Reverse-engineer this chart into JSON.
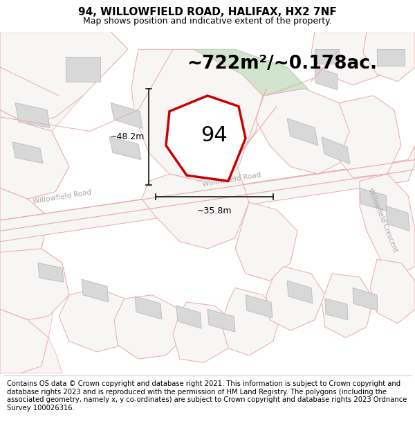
{
  "title_line1": "94, WILLOWFIELD ROAD, HALIFAX, HX2 7NF",
  "title_line2": "Map shows position and indicative extent of the property.",
  "area_text": "~722m²/~0.178ac.",
  "label_94": "94",
  "dim_vertical": "~48.2m",
  "dim_horizontal": "~35.8m",
  "footer_text": "Contains OS data © Crown copyright and database right 2021. This information is subject to Crown copyright and database rights 2023 and is reproduced with the permission of HM Land Registry. The polygons (including the associated geometry, namely x, y co-ordinates) are subject to Crown copyright and database rights 2023 Ordnance Survey 100026316.",
  "map_bg": "#f8f5f5",
  "road_line_color": "#e8aaaa",
  "highlight_color": "#cc0000",
  "building_fill": "#d8d8d8",
  "building_edge": "#c0c0c0",
  "green_fill": "#d0e4ce",
  "green_edge": "#b8d0b4",
  "white_fill": "#ffffff",
  "parcel_fill": "#f8f5f5",
  "parcel_edge": "#e8aaaa",
  "dim_color": "#111111",
  "road_label_color": "#aaaaaa",
  "title_fontsize": 11,
  "subtitle_fontsize": 9,
  "area_fontsize": 19,
  "label_fontsize": 22,
  "dim_fontsize": 9,
  "road_label_fontsize": 7.5,
  "footer_fontsize": 7.2
}
